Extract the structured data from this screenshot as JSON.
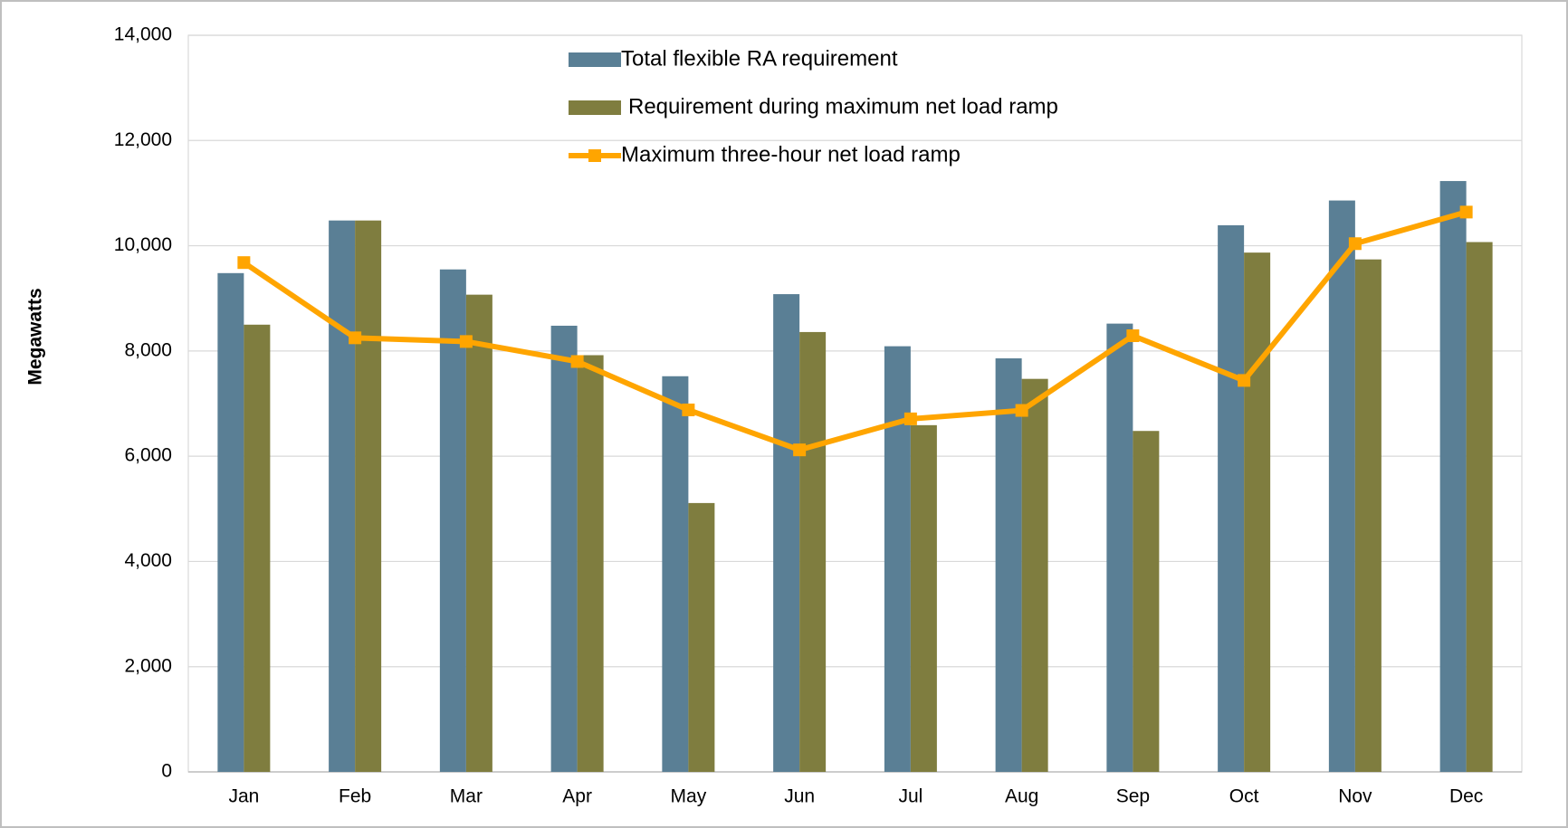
{
  "chart_data": {
    "type": "bar-line",
    "y_label": "Megawatts",
    "categories": [
      "Jan",
      "Feb",
      "Mar",
      "Apr",
      "May",
      "Jun",
      "Jul",
      "Aug",
      "Sep",
      "Oct",
      "Nov",
      "Dec"
    ],
    "series": [
      {
        "name": "Total flexible RA requirement",
        "type": "bar",
        "color": "#5a7f95",
        "values": [
          9480,
          10480,
          9550,
          8480,
          7520,
          9080,
          8090,
          7860,
          8520,
          10390,
          10860,
          11230
        ]
      },
      {
        "name": "Requirement during maximum net load ramp",
        "type": "bar",
        "color": "#7f7d3f",
        "values": [
          8500,
          10480,
          9070,
          7920,
          5110,
          8360,
          6590,
          7470,
          6480,
          9870,
          9740,
          10070
        ]
      },
      {
        "name": "Maximum three-hour net load ramp",
        "type": "line",
        "color": "#ffa500",
        "values": [
          9680,
          8250,
          8180,
          7800,
          6880,
          6120,
          6710,
          6870,
          8290,
          7440,
          10040,
          10640
        ]
      }
    ],
    "ylim": [
      0,
      14000
    ],
    "yticks": [
      0,
      {
        "value": 2000,
        "label": "2,000"
      },
      {
        "value": 4000,
        "label": "4,000"
      },
      {
        "value": 6000,
        "label": "6,000"
      },
      {
        "value": 8000,
        "label": "8,000"
      },
      {
        "value": 10000,
        "label": "10,000"
      },
      {
        "value": 12000,
        "label": "12,000"
      },
      {
        "value": 14000,
        "label": "14,000"
      }
    ],
    "grid": true,
    "legend": "top"
  }
}
